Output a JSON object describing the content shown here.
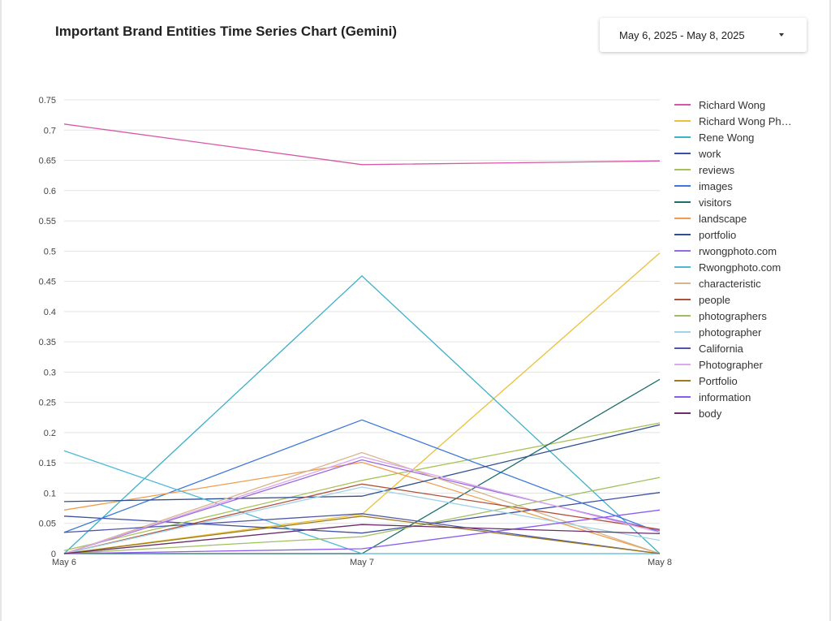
{
  "header": {
    "title": "Important Brand Entities Time Series Chart (Gemini)"
  },
  "date_picker": {
    "value": "May 6, 2025 - May 8, 2025",
    "icon": "caret-down-icon"
  },
  "legend_truncated": {
    "Richard Wong Photography": "Richard Wong Ph…"
  },
  "chart_data": {
    "type": "line",
    "title": "Important Brand Entities Time Series Chart (Gemini)",
    "xlabel": "",
    "ylabel": "",
    "categories": [
      "May 6",
      "May 7",
      "May 8"
    ],
    "ylim": [
      0,
      0.75
    ],
    "yticks": [
      "0",
      "0.05",
      "0.1",
      "0.15",
      "0.2",
      "0.25",
      "0.3",
      "0.35",
      "0.4",
      "0.45",
      "0.5",
      "0.55",
      "0.6",
      "0.65",
      "0.7",
      "0.75"
    ],
    "grid": true,
    "legend_position": "right",
    "series": [
      {
        "name": "Richard Wong",
        "color": "#d957a8",
        "values": [
          0.71,
          0.643,
          0.649
        ]
      },
      {
        "name": "Richard Wong Photography",
        "color": "#e8c23a",
        "values": [
          0.0,
          0.065,
          0.497
        ]
      },
      {
        "name": "Rene Wong",
        "color": "#3fb1c9",
        "values": [
          0.0,
          0.459,
          0.0
        ]
      },
      {
        "name": "work",
        "color": "#3e4ea3",
        "values": [
          0.062,
          0.034,
          0.101
        ]
      },
      {
        "name": "reviews",
        "color": "#a8c255",
        "values": [
          0.005,
          0.121,
          0.216
        ]
      },
      {
        "name": "images",
        "color": "#3e78db",
        "values": [
          0.035,
          0.221,
          0.035
        ]
      },
      {
        "name": "visitors",
        "color": "#1f6d6d",
        "values": [
          0.0,
          0.0,
          0.288
        ]
      },
      {
        "name": "landscape",
        "color": "#ef9d4d",
        "values": [
          0.072,
          0.151,
          0.0
        ]
      },
      {
        "name": "portfolio",
        "color": "#2e4f8f",
        "values": [
          0.086,
          0.095,
          0.213
        ]
      },
      {
        "name": "rwongphoto.com",
        "color": "#9a6be0",
        "values": [
          0.0,
          0.155,
          0.038
        ]
      },
      {
        "name": "Rwongphoto.com",
        "color": "#4fb8d9",
        "values": [
          0.17,
          0.0,
          0.0
        ]
      },
      {
        "name": "characteristic",
        "color": "#d6b48c",
        "values": [
          0.0,
          0.167,
          0.0
        ]
      },
      {
        "name": "people",
        "color": "#b0503a",
        "values": [
          0.0,
          0.115,
          0.04
        ]
      },
      {
        "name": "photographers",
        "color": "#a0c060",
        "values": [
          0.0,
          0.028,
          0.126
        ]
      },
      {
        "name": "photographer",
        "color": "#9fd3e6",
        "values": [
          0.0,
          0.11,
          0.022
        ]
      },
      {
        "name": "California",
        "color": "#5057a8",
        "values": [
          0.035,
          0.066,
          0.0
        ]
      },
      {
        "name": "Photographer",
        "color": "#dba9ec",
        "values": [
          0.0,
          0.16,
          0.035
        ]
      },
      {
        "name": "Portfolio",
        "color": "#9c7a1f",
        "values": [
          0.0,
          0.062,
          0.0
        ]
      },
      {
        "name": "information",
        "color": "#8b5cf0",
        "values": [
          0.0,
          0.008,
          0.072
        ]
      },
      {
        "name": "body",
        "color": "#6a2d6a",
        "values": [
          0.0,
          0.048,
          0.033
        ]
      }
    ]
  }
}
